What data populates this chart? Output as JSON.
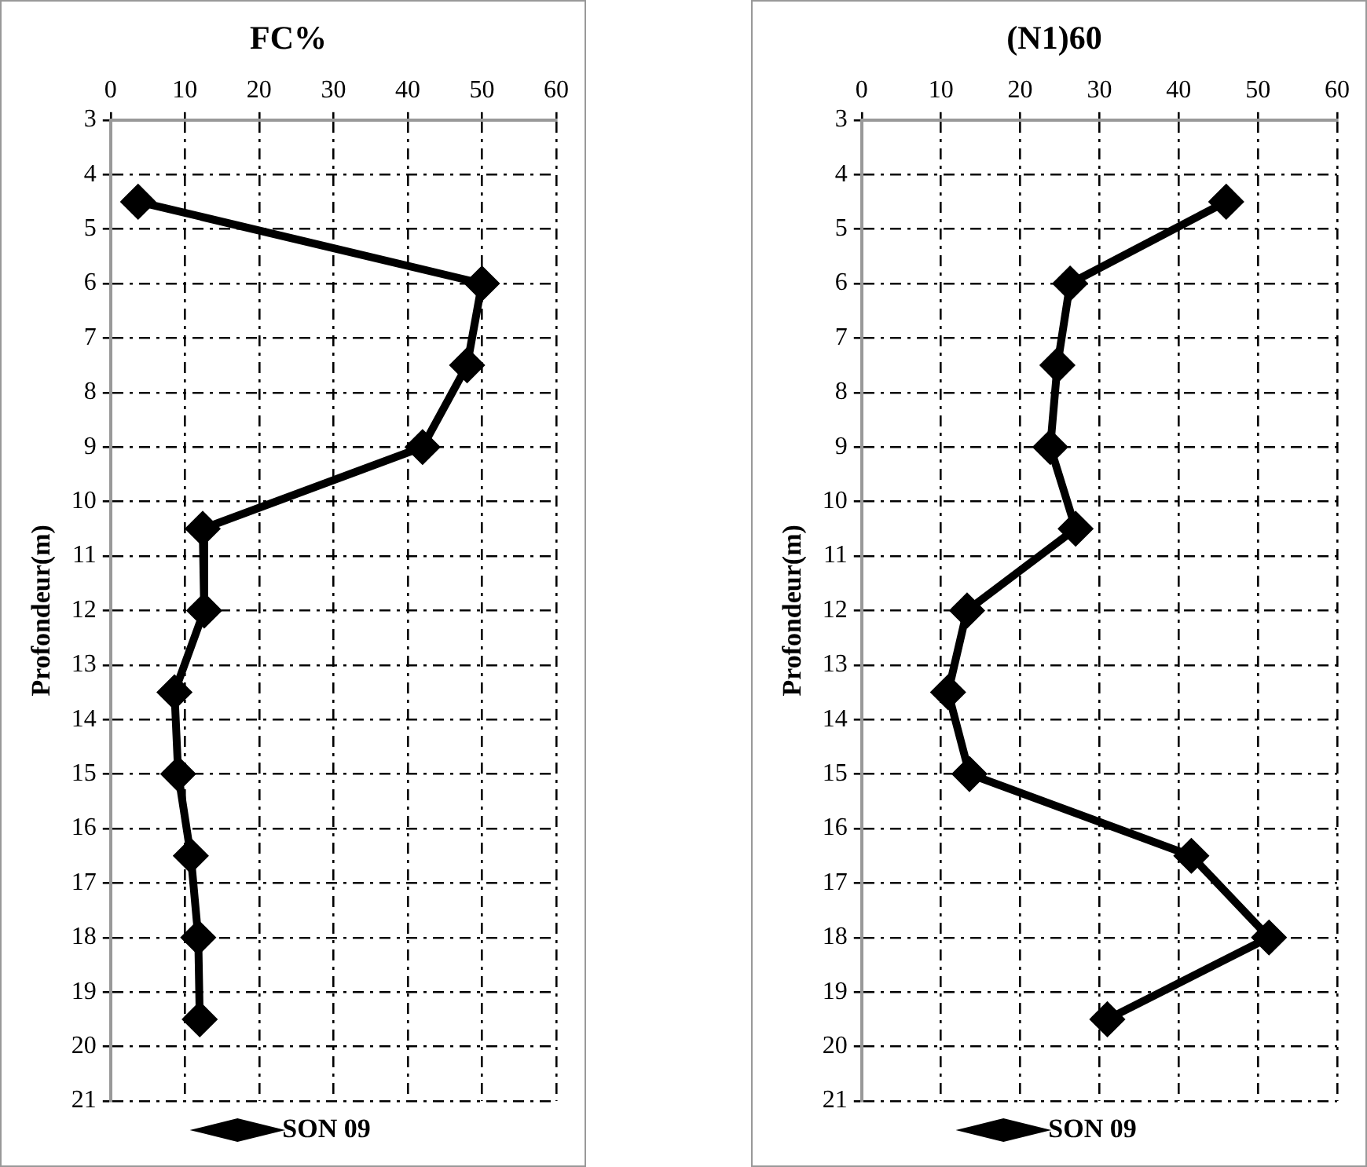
{
  "chart_data": [
    {
      "type": "line",
      "title": "FC%",
      "ylabel": "Profondeur(m)",
      "orientation": "horizontal",
      "x": [
        4.5,
        6,
        7.5,
        9,
        10.5,
        12,
        13.5,
        15,
        16.5,
        18,
        19.5
      ],
      "series": [
        {
          "name": "SON 09",
          "color": "#000000",
          "values": [
            3.7,
            50,
            48,
            42,
            12.4,
            12.6,
            8.6,
            9.1,
            10.8,
            11.8,
            12
          ]
        }
      ],
      "xlim": [
        0,
        60
      ],
      "xticks": [
        0,
        10,
        20,
        30,
        40,
        50,
        60
      ],
      "ylim": [
        21,
        3
      ],
      "yticks": [
        3,
        4,
        5,
        6,
        7,
        8,
        9,
        10,
        11,
        12,
        13,
        14,
        15,
        16,
        17,
        18,
        19,
        20,
        21
      ],
      "grid": true,
      "legend": "bottom",
      "marker": "diamond",
      "line_style": "solid"
    },
    {
      "type": "line",
      "title": "(N1)60",
      "ylabel": "Profondeur(m)",
      "orientation": "horizontal",
      "x": [
        4.5,
        6,
        7.5,
        9,
        10.5,
        12,
        13.5,
        15,
        16.5,
        18,
        19.5
      ],
      "series": [
        {
          "name": "SON 09",
          "color": "#000000",
          "values": [
            46,
            26.3,
            24.7,
            23.8,
            27,
            13.3,
            10.9,
            13.6,
            41.6,
            51.4,
            31
          ]
        }
      ],
      "xlim": [
        0,
        60
      ],
      "xticks": [
        0,
        10,
        20,
        30,
        40,
        50,
        60
      ],
      "ylim": [
        21,
        3
      ],
      "yticks": [
        3,
        4,
        5,
        6,
        7,
        8,
        9,
        10,
        11,
        12,
        13,
        14,
        15,
        16,
        17,
        18,
        19,
        20,
        21
      ],
      "grid": true,
      "legend": "bottom",
      "marker": "diamond",
      "line_style": "solid"
    }
  ]
}
